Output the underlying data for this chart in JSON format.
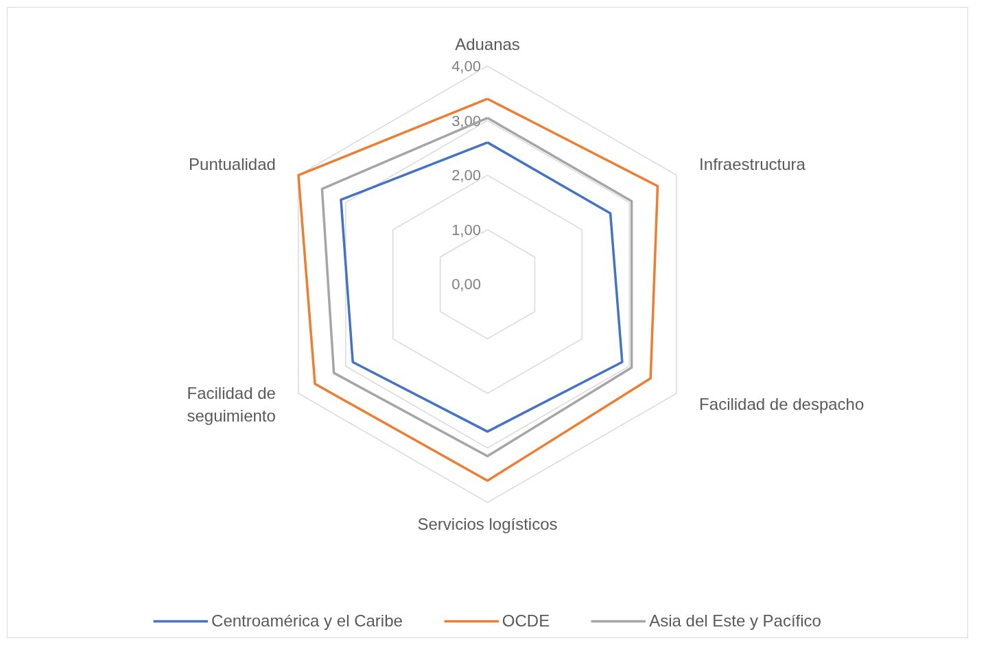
{
  "chart_data": {
    "type": "radar",
    "categories": [
      "Aduanas",
      "Infraestructura",
      "Facilidad de despacho",
      "Servicios logísticos",
      "Facilidad de\nseguimiento",
      "Puntualidad"
    ],
    "ylim": [
      0,
      4
    ],
    "yticks": [
      {
        "value": 0,
        "label": "0,00"
      },
      {
        "value": 1,
        "label": "1,00"
      },
      {
        "value": 2,
        "label": "2,00"
      },
      {
        "value": 3,
        "label": "3,00"
      },
      {
        "value": 4,
        "label": "4,00"
      }
    ],
    "grid": true,
    "legend": "bottom",
    "marker": "none",
    "line_style": "solid",
    "series": [
      {
        "name": "Centroamérica y el Caribe",
        "color": "#4472c4",
        "values": [
          2.6,
          2.6,
          2.85,
          2.7,
          2.85,
          3.1
        ]
      },
      {
        "name": "OCDE",
        "color": "#ed7d31",
        "values": [
          3.4,
          3.6,
          3.45,
          3.6,
          3.65,
          4.0
        ]
      },
      {
        "name": "Asia del Este y Pacífico",
        "color": "#a5a5a5",
        "values": [
          3.05,
          3.05,
          3.05,
          3.15,
          3.25,
          3.5
        ]
      }
    ]
  }
}
